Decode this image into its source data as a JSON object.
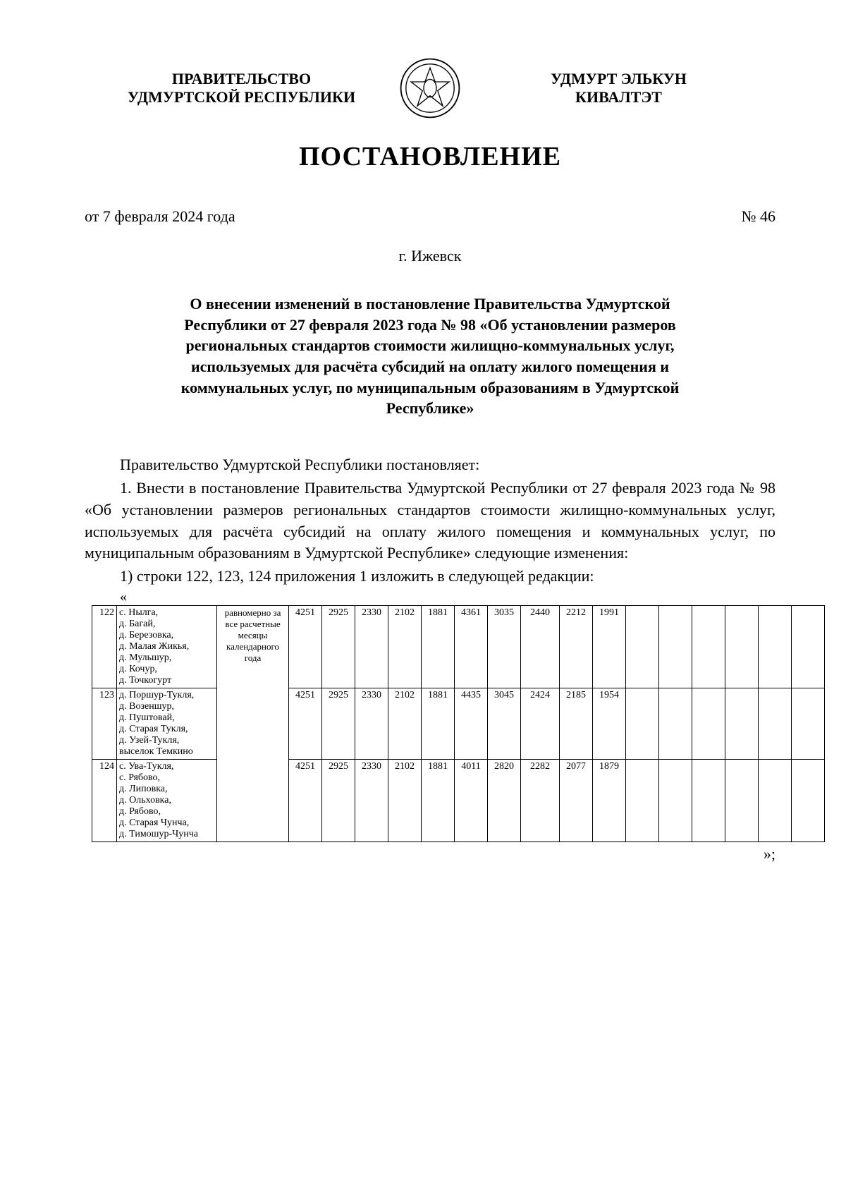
{
  "header": {
    "left_line1": "ПРАВИТЕЛЬСТВО",
    "left_line2": "УДМУРТСКОЙ РЕСПУБЛИКИ",
    "right_line1": "УДМУРТ ЭЛЬКУН",
    "right_line2": "КИВАЛТЭТ"
  },
  "doc_type": "ПОСТАНОВЛЕНИЕ",
  "date": "от 7 февраля 2024 года",
  "number": "№ 46",
  "city": "г. Ижевск",
  "subject": "О внесении изменений в постановление Правительства Удмуртской Республики от 27 февраля 2023 года № 98 «Об установлении размеров региональных стандартов стоимости жилищно-коммунальных услуг, используемых для расчёта субсидий на оплату жилого помещения и коммунальных услуг, по муниципальным образованиям в Удмуртской Республике»",
  "para1": "Правительство Удмуртской Республики постановляет:",
  "para2": "1. Внести в постановление Правительства Удмуртской Республики от 27 февраля 2023 года № 98 «Об установлении размеров региональных стандартов стоимости жилищно-коммунальных услуг, используемых для расчёта субсидий на оплату жилого помещения и коммунальных услуг, по муниципальным образованиям в Удмуртской Республике» следующие изменения:",
  "para3": "1) строки 122, 123, 124 приложения 1 изложить в следующей редакции:",
  "quote_open": "«",
  "quote_close": "»;",
  "table": {
    "note_text": "равномерно за все расчетные месяцы календарного года",
    "rows": [
      {
        "num": "122",
        "names": "с. Нылга,\nд. Багай,\nд. Березовка,\nд. Малая Жикья,\nд. Мульшур,\nд. Кочур,\nд. Точкогурт",
        "vals": [
          "4251",
          "2925",
          "2330",
          "2102",
          "1881",
          "4361",
          "3035",
          "2440",
          "2212",
          "1991",
          "",
          "",
          "",
          "",
          "",
          ""
        ]
      },
      {
        "num": "123",
        "names": "д. Поршур-Тукля,\nд. Возеншур,\nд. Пуштовай,\nд. Старая Тукля,\nд. Узей-Тукля,\nвыселок Темкино",
        "vals": [
          "4251",
          "2925",
          "2330",
          "2102",
          "1881",
          "4435",
          "3045",
          "2424",
          "2185",
          "1954",
          "",
          "",
          "",
          "",
          "",
          ""
        ]
      },
      {
        "num": "124",
        "names": "с. Ува-Тукля,\nс. Рябово,\nд. Липовка,\nд. Ольховка,\nд. Рябово,\nд. Старая Чунча,\nд. Тимошур-Чунча",
        "vals": [
          "4251",
          "2925",
          "2330",
          "2102",
          "1881",
          "4011",
          "2820",
          "2282",
          "2077",
          "1879",
          "",
          "",
          "",
          "",
          "",
          ""
        ]
      }
    ]
  }
}
